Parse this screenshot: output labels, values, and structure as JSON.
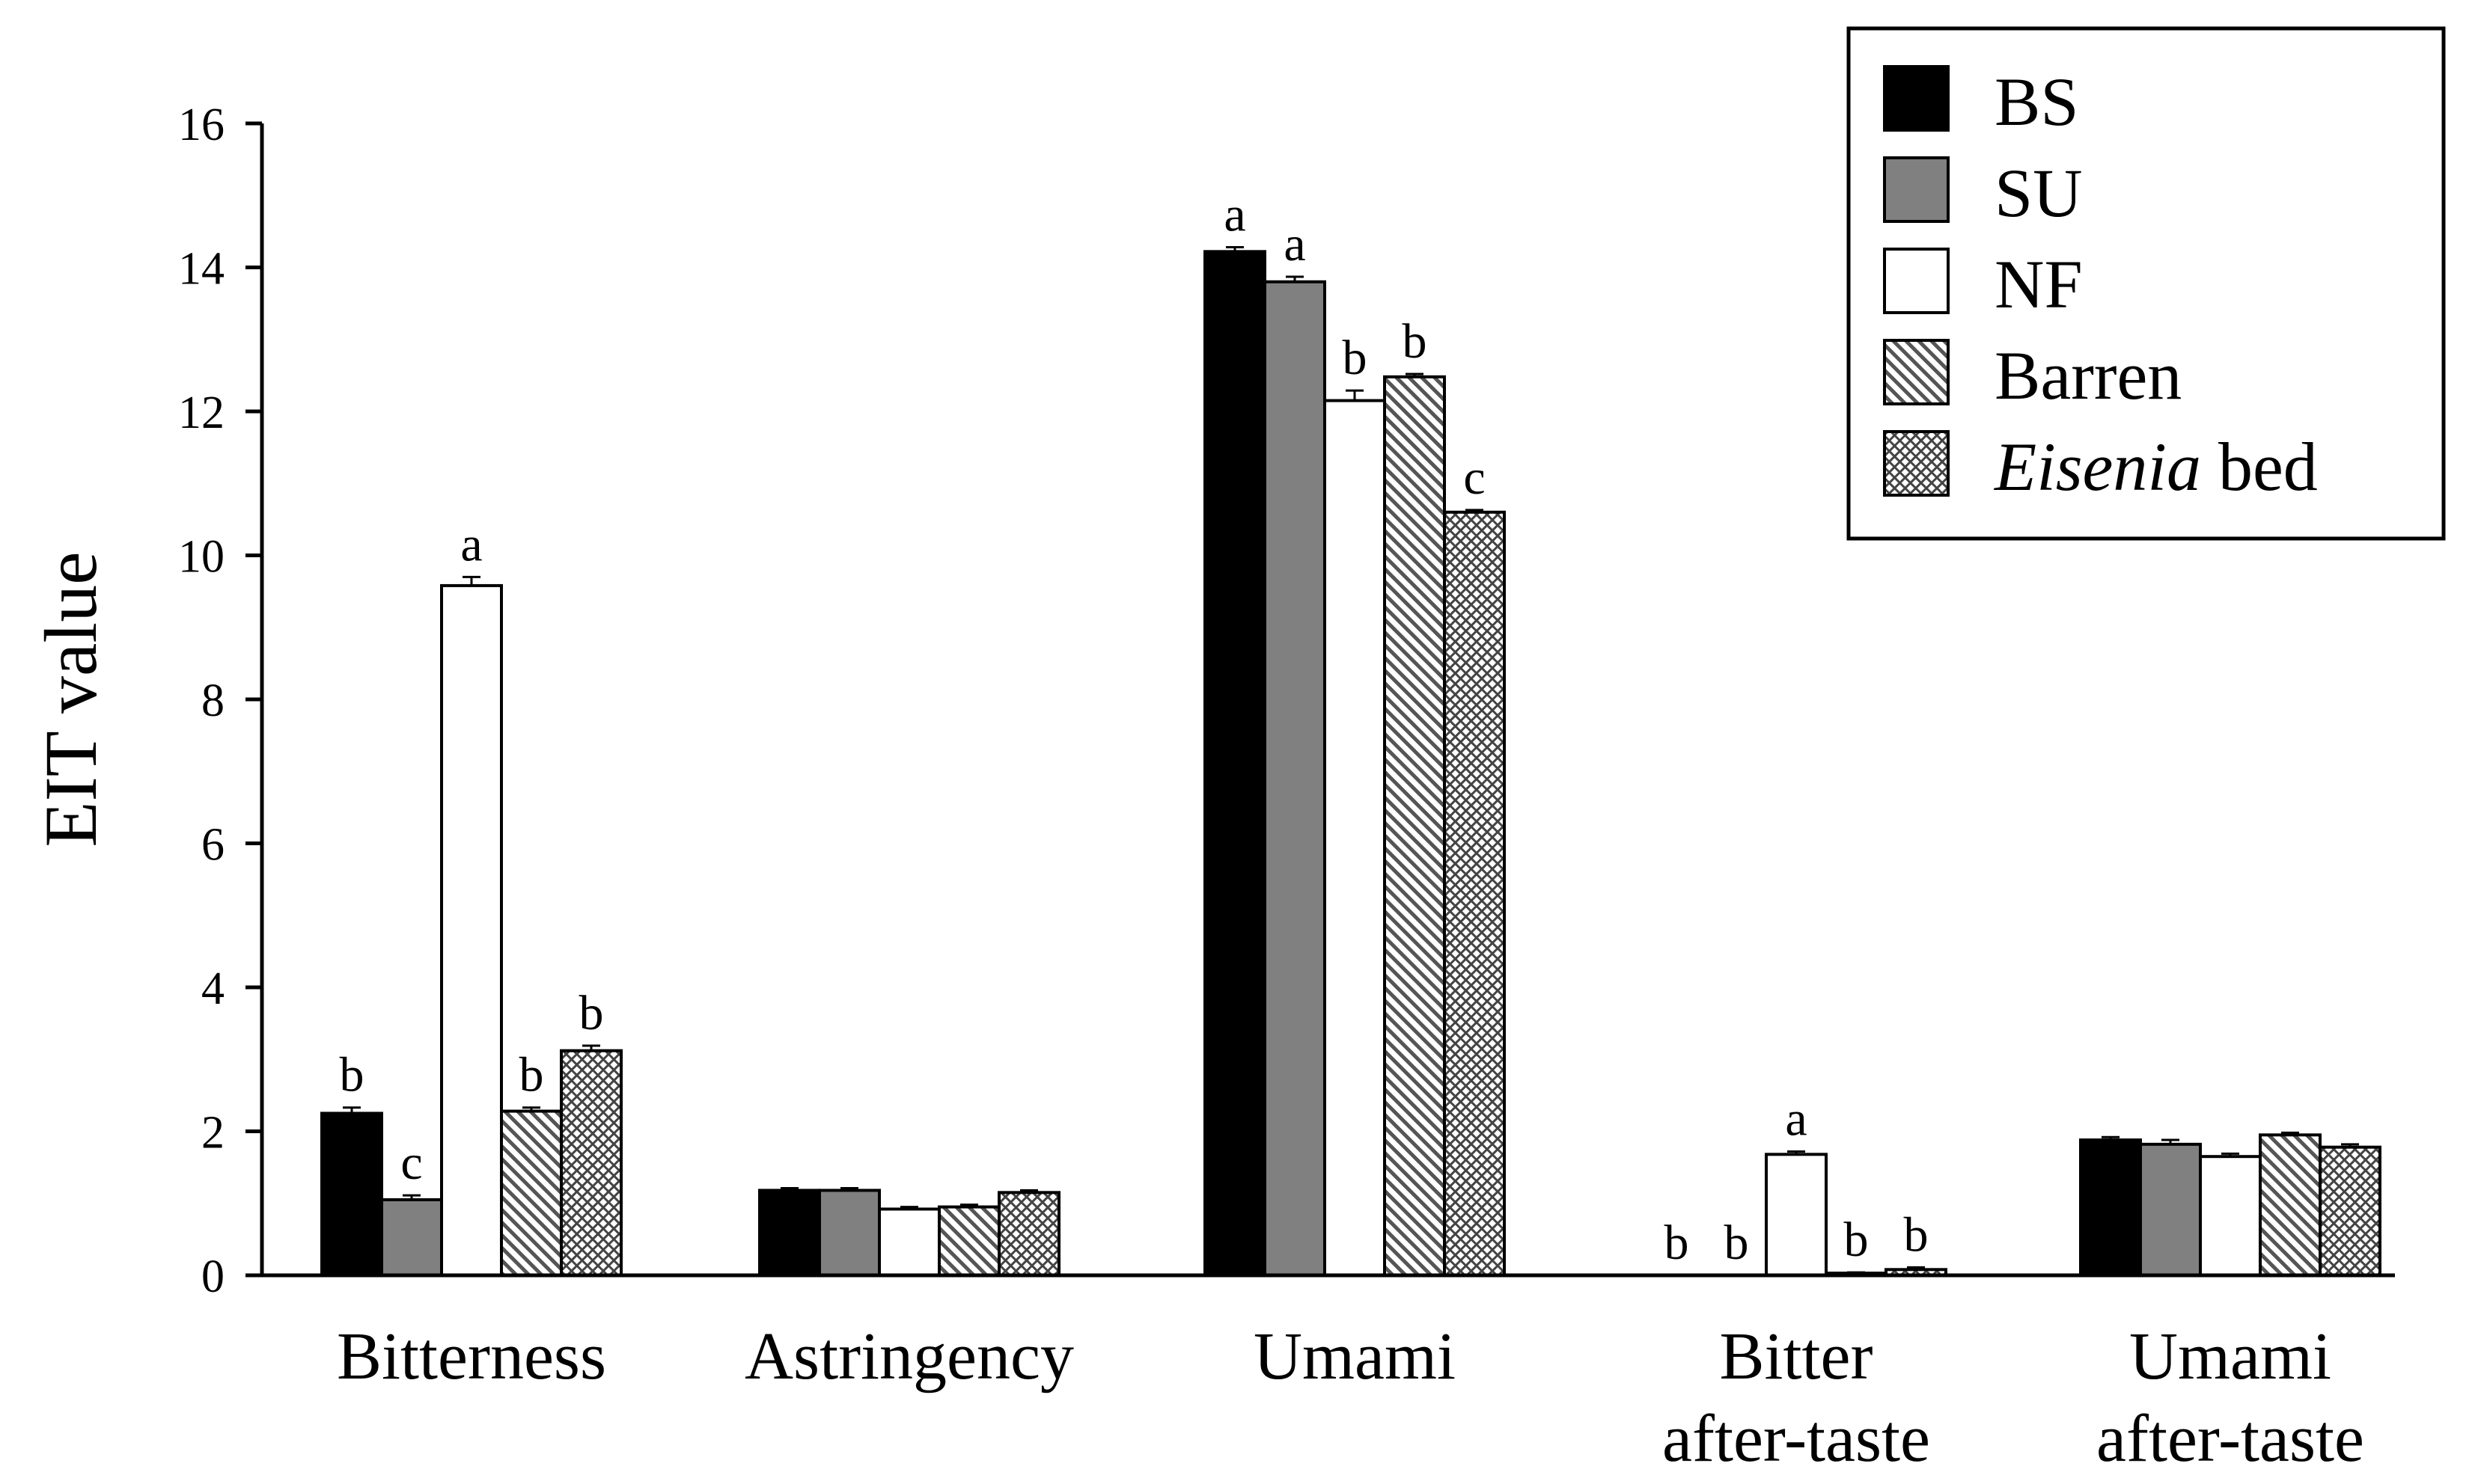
{
  "chart_data": {
    "type": "bar",
    "ylabel": "EIT value",
    "xlabel": "",
    "ylim": [
      0,
      16
    ],
    "yticks": [
      "0",
      "2",
      "4",
      "6",
      "8",
      "10",
      "12",
      "14",
      "16"
    ],
    "categories": [
      [
        "Bitterness"
      ],
      [
        "Astringency"
      ],
      [
        "Umami"
      ],
      [
        "Bitter",
        "after-taste"
      ],
      [
        "Umami",
        "after-taste"
      ]
    ],
    "series": [
      {
        "name": "BS",
        "pattern": "solid-black",
        "values": [
          2.25,
          1.18,
          14.22,
          0.0,
          1.88
        ],
        "errors": [
          0.08,
          0.03,
          0.06,
          0.0,
          0.04
        ],
        "letters": [
          "b",
          "",
          "a",
          "b",
          ""
        ]
      },
      {
        "name": "SU",
        "pattern": "solid-gray",
        "values": [
          1.05,
          1.18,
          13.8,
          0.0,
          1.82
        ],
        "errors": [
          0.06,
          0.03,
          0.07,
          0.0,
          0.06
        ],
        "letters": [
          "c",
          "",
          "a",
          "b",
          ""
        ]
      },
      {
        "name": "NF",
        "pattern": "white",
        "values": [
          9.58,
          0.92,
          12.15,
          1.68,
          1.65
        ],
        "errors": [
          0.12,
          0.03,
          0.14,
          0.04,
          0.04
        ],
        "letters": [
          "a",
          "",
          "b",
          "a",
          ""
        ]
      },
      {
        "name": "Barren",
        "pattern": "diagonal",
        "values": [
          2.28,
          0.95,
          12.48,
          0.03,
          1.95
        ],
        "errors": [
          0.05,
          0.03,
          0.04,
          0.01,
          0.03
        ],
        "letters": [
          "b",
          "",
          "b",
          "b",
          ""
        ]
      },
      {
        "name": "Eisenia bed",
        "name_italic": "Eisenia",
        "name_rest": " bed",
        "pattern": "crosshatch",
        "values": [
          3.12,
          1.15,
          10.6,
          0.08,
          1.78
        ],
        "errors": [
          0.07,
          0.03,
          0.03,
          0.03,
          0.04
        ],
        "letters": [
          "b",
          "",
          "c",
          "b",
          ""
        ]
      }
    ],
    "legend_position": "top-right",
    "colors": {
      "bs": "#000000",
      "su": "#808080",
      "nf": "#ffffff",
      "axis": "#000000"
    }
  }
}
